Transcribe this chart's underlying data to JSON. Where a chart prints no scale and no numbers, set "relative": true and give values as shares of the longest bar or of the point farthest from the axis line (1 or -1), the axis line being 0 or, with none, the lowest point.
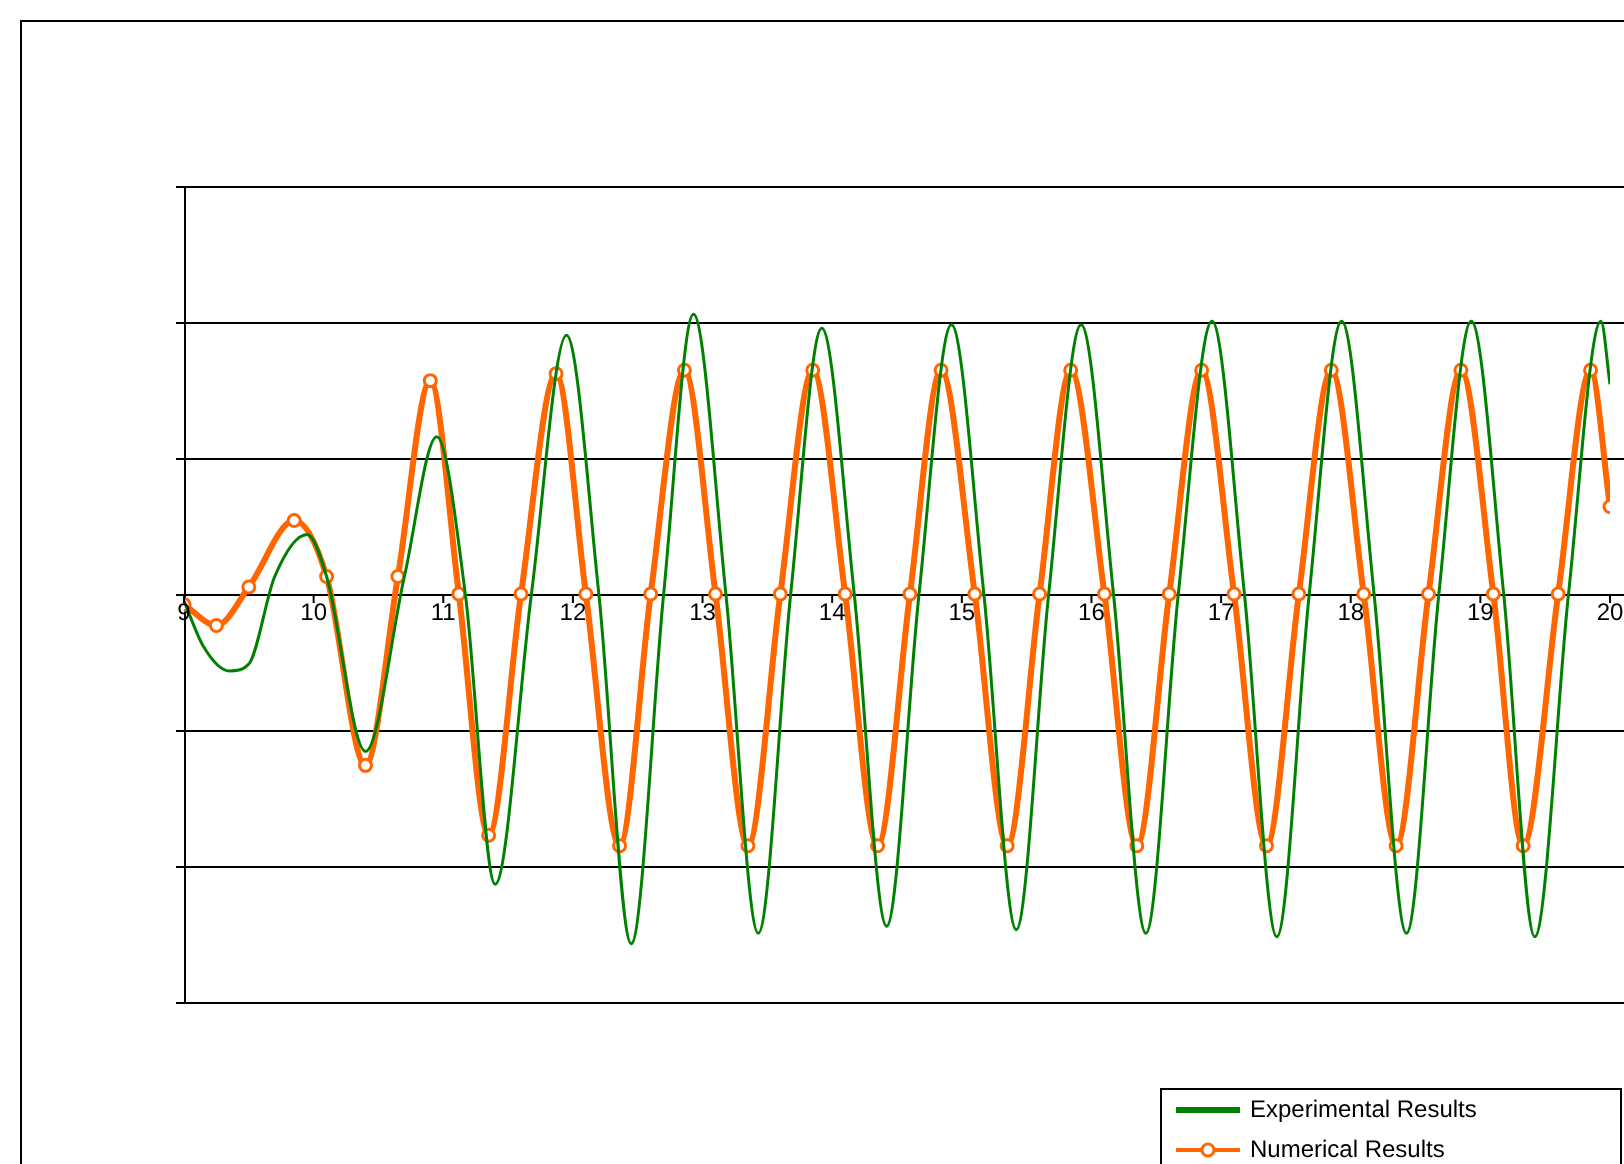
{
  "chart_data": {
    "type": "line",
    "relative": true,
    "grid": "y",
    "legend": "bottom right",
    "xlim": [
      9,
      20
    ],
    "xticks": [
      9,
      10,
      11,
      12,
      13,
      14,
      15,
      16,
      17,
      18,
      19,
      20
    ],
    "series": [
      {
        "name": "Experimental Results",
        "color": "#008000",
        "marker": "none",
        "x": [
          9.0,
          9.15,
          9.35,
          9.5,
          9.7,
          9.95,
          10.1,
          10.4,
          10.7,
          10.95,
          11.17,
          11.4,
          11.68,
          11.95,
          12.2,
          12.45,
          12.7,
          12.93,
          13.18,
          13.43,
          13.68,
          13.92,
          14.17,
          14.42,
          14.67,
          14.92,
          15.17,
          15.42,
          15.67,
          15.92,
          16.17,
          16.42,
          16.67,
          16.93,
          17.18,
          17.43,
          17.68,
          17.93,
          18.18,
          18.43,
          18.68,
          18.93,
          19.18,
          19.42,
          19.68,
          19.93,
          20.0
        ],
        "values": [
          -0.02,
          -0.15,
          -0.22,
          -0.2,
          0.05,
          0.17,
          0.05,
          -0.45,
          0.05,
          0.45,
          0.0,
          -0.83,
          0,
          0.74,
          0,
          -1.0,
          0,
          0.8,
          0,
          -0.97,
          0,
          0.76,
          0,
          -0.95,
          0,
          0.77,
          0,
          -0.96,
          0,
          0.77,
          0,
          -0.97,
          0,
          0.78,
          0,
          -0.98,
          0,
          0.78,
          0,
          -0.97,
          0,
          0.78,
          0,
          -0.98,
          0,
          0.78,
          0.6
        ]
      },
      {
        "name": "Numerical Results",
        "color": "#ff6600",
        "marker": "circle",
        "x": [
          9.0,
          9.25,
          9.5,
          9.85,
          10.1,
          10.4,
          10.65,
          10.9,
          11.12,
          11.35,
          11.6,
          11.87,
          12.1,
          12.36,
          12.6,
          12.86,
          13.1,
          13.35,
          13.6,
          13.85,
          14.1,
          14.35,
          14.6,
          14.84,
          15.1,
          15.35,
          15.6,
          15.84,
          16.1,
          16.35,
          16.6,
          16.85,
          17.1,
          17.35,
          17.6,
          17.85,
          18.1,
          18.35,
          18.6,
          18.85,
          19.1,
          19.33,
          19.6,
          19.85,
          20.0
        ],
        "values": [
          -0.03,
          -0.09,
          0.02,
          0.21,
          0.05,
          -0.49,
          0.05,
          0.61,
          0,
          -0.69,
          0,
          0.63,
          0,
          -0.72,
          0,
          0.64,
          0,
          -0.72,
          0,
          0.64,
          0,
          -0.72,
          0,
          0.64,
          0,
          -0.72,
          0,
          0.64,
          0,
          -0.72,
          0,
          0.64,
          0,
          -0.72,
          0,
          0.64,
          0,
          -0.72,
          0,
          0.64,
          0,
          -0.72,
          0,
          0.64,
          0.25
        ]
      }
    ]
  }
}
